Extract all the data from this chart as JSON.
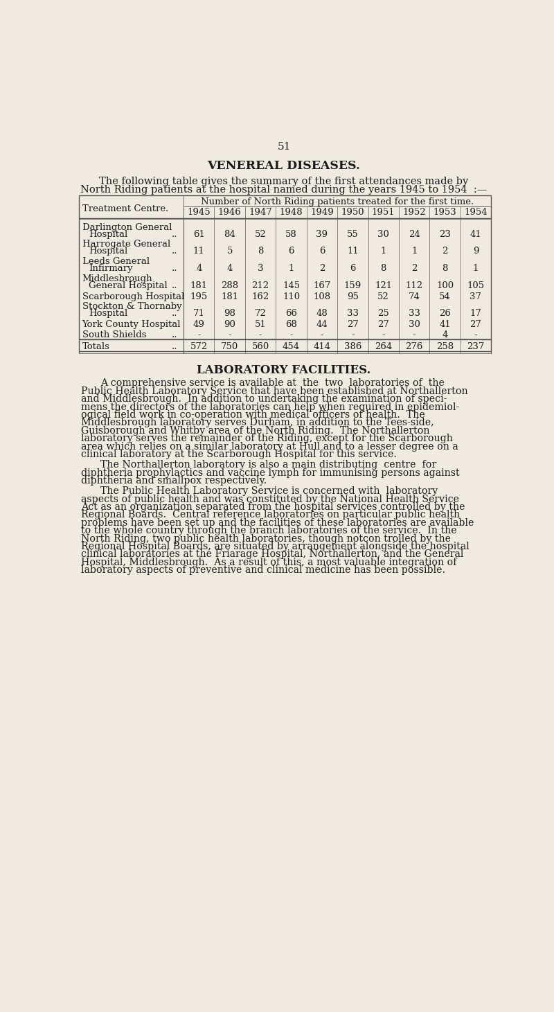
{
  "page_number": "51",
  "bg_color": "#f0ebe0",
  "text_color": "#1a1a1a",
  "title1": "VENEREAL DISEASES.",
  "intro_line1": "The following table gives the summary of the first attendances made by",
  "intro_line2": "North Riding patients at the hospital named during the years 1945 to 1954  :—",
  "table_header1": "Number of North Riding patients treated for the first time.",
  "table_col_header": "Treatment Centre.",
  "years": [
    "1945",
    "1946",
    "1947",
    "1948",
    "1949",
    "1950",
    "1951",
    "1952",
    "1953",
    "1954"
  ],
  "rows": [
    {
      "line1": "Darlington General",
      "line2": "Hospital",
      "dots": true,
      "values": [
        61,
        84,
        52,
        58,
        39,
        55,
        30,
        24,
        23,
        41
      ]
    },
    {
      "line1": "Harrogate General",
      "line2": "Hospital",
      "dots": true,
      "values": [
        11,
        5,
        8,
        6,
        6,
        11,
        1,
        1,
        2,
        9
      ]
    },
    {
      "line1": "Leeds General",
      "line2": "Infirmary",
      "dots": true,
      "values": [
        4,
        4,
        3,
        1,
        2,
        6,
        8,
        2,
        8,
        1
      ]
    },
    {
      "line1": "Middlesbrough",
      "line2": "General Hospital",
      "dots": true,
      "values": [
        181,
        288,
        212,
        145,
        167,
        159,
        121,
        112,
        100,
        105
      ]
    },
    {
      "line1": "Scarborough Hospital",
      "line2": null,
      "dots": false,
      "values": [
        195,
        181,
        162,
        110,
        108,
        95,
        52,
        74,
        54,
        37
      ]
    },
    {
      "line1": "Stockton & Thornaby",
      "line2": "Hospital",
      "dots": true,
      "values": [
        71,
        98,
        72,
        66,
        48,
        33,
        25,
        33,
        26,
        17
      ]
    },
    {
      "line1": "York County Hospital",
      "line2": null,
      "dots": false,
      "values": [
        49,
        90,
        51,
        68,
        44,
        27,
        27,
        30,
        41,
        27
      ]
    },
    {
      "line1": "South Shields",
      "line2": null,
      "dots": true,
      "values": [
        "-",
        "-",
        "-",
        "-",
        "-",
        "-",
        "-",
        "-",
        "4",
        "-"
      ]
    }
  ],
  "totals": [
    572,
    750,
    560,
    454,
    414,
    386,
    264,
    276,
    258,
    237
  ],
  "title2": "LABORATORY FACILITIES.",
  "para1_lines": [
    "A comprehensive service is available at  the  two  laboratories of  the",
    "Public Health Laboratory Service that have been established at Northallerton",
    "and Middlesbrough.  In addition to undertaking the examination of speci­",
    "mens the directors of the laboratories can help when required in epidemiol­",
    "ogical field work in co-operation with medical officers of health.  The",
    "Middlesbrough laboratory serves Durham, in addition to the Tees-side,",
    "Guisborough and Whitby area of the North Riding.  The Northallerton",
    "laboratory serves the remainder of the Riding, except for the Scarborough",
    "area which relies on a similar laboratory at Hull and to a lesser degree on a",
    "clinical laboratory at the Scarborough Hospital for this service."
  ],
  "para2_lines": [
    "The Northallerton laboratory is also a main distributing  centre  for",
    "diphtheria prophylactics and vaccine lymph for immunising persons against",
    "diphtheria and smallpox respectively."
  ],
  "para3_lines": [
    "The Public Health Laboratory Service is concerned with  laboratory",
    "aspects of public health and was constituted by the National Health Service",
    "Act as an organization separated from the hospital services controlled by the",
    "Regional Boards.  Central reference laboratories on particular public health",
    "problems have been set up and the facilities of these laboratories are available",
    "to the whole country through the branch laboratories of the service.  In the",
    "North Riding, two public health laboratories, though notcon trolled by the",
    "Regional Hospital Boards, are situated by arrangement alongside the hospital",
    "clinical laboratories at the Friarage Hospital, Northallerton, and the General",
    "Hospital, Middlesbrough.  As a result of this, a most valuable integration of",
    "laboratory aspects of preventive and clinical medicine has been possible."
  ]
}
